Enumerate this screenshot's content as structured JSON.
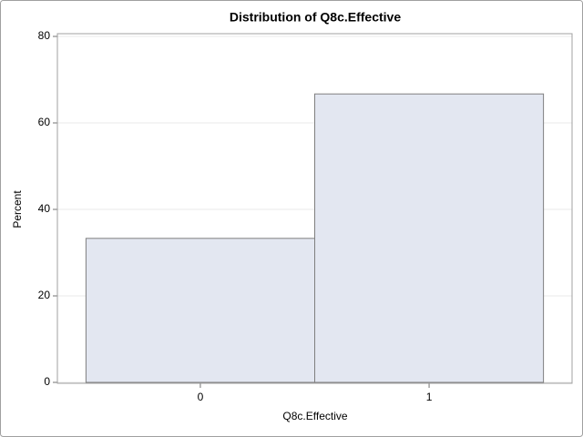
{
  "chart_data": {
    "type": "histogram",
    "title": "Distribution of Q8c.Effective",
    "x_label": "Q8c.Effective",
    "y_label": "Percent",
    "bins": [
      -0.5,
      0.5,
      1.5
    ],
    "values": [
      33.3,
      66.7
    ],
    "color": "#e3e7f1",
    "edge_color": "#7f7f7f",
    "xlim": [
      -0.625,
      1.625
    ],
    "xticks": [
      0,
      1
    ],
    "ylim": [
      0,
      80
    ],
    "yticks": [
      0,
      20,
      40,
      60,
      80
    ],
    "grid": true
  }
}
